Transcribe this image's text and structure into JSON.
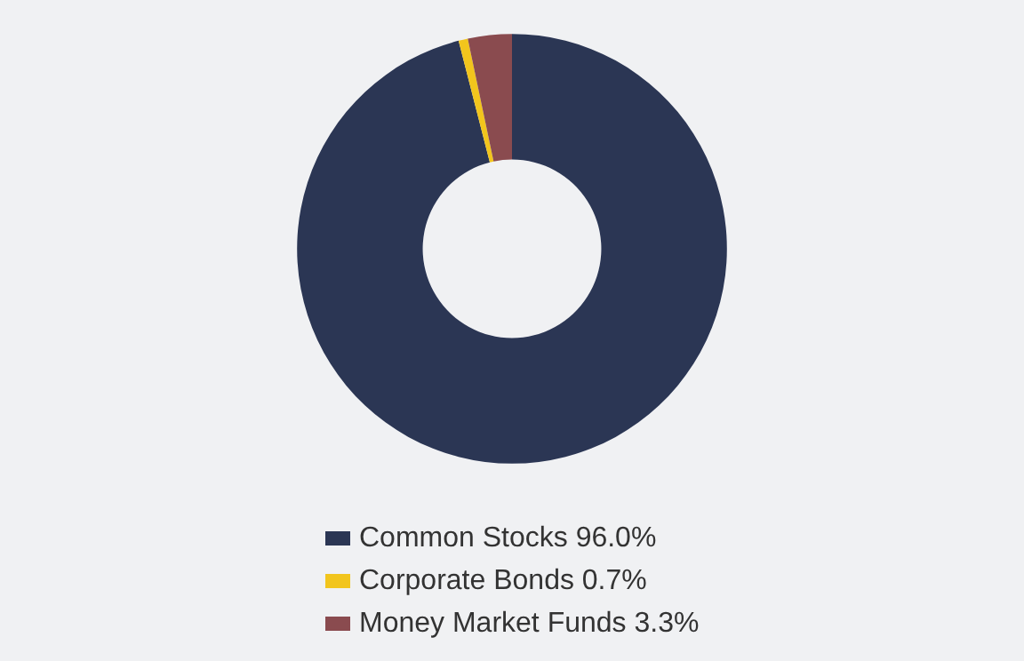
{
  "chart_data": {
    "type": "donut",
    "categories": [
      "Common Stocks 96.0%",
      "Corporate Bonds 0.7%",
      "Money Market Funds 3.3%"
    ],
    "values": [
      96.0,
      0.7,
      3.3
    ],
    "colors": [
      "#2b3654",
      "#f2c51d",
      "#8a4b4f"
    ],
    "legend": "bottom"
  }
}
